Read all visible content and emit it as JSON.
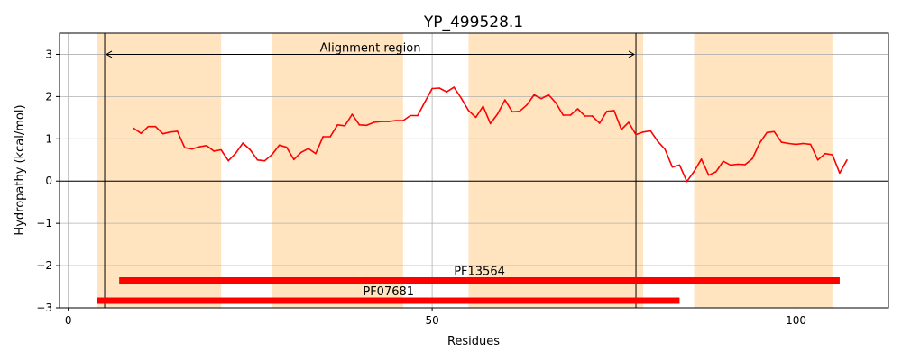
{
  "chart_data": {
    "type": "line",
    "title": "YP_499528.1",
    "xlabel": "Residues",
    "ylabel": "Hydropathy (kcal/mol)",
    "xlim": [
      -1.2,
      112.7
    ],
    "ylim": [
      -3,
      3.5
    ],
    "x_ticks": [
      0,
      50,
      100
    ],
    "y_ticks": [
      -3,
      -2,
      -1,
      0,
      1,
      2,
      3
    ],
    "grid": true,
    "colors": {
      "line": "#ff0000",
      "band": "#ffe4bf",
      "domain": "#ff0000",
      "axis": "#000000",
      "grid": "#b0b0b0"
    },
    "bands": [
      [
        4,
        21
      ],
      [
        28,
        46
      ],
      [
        55,
        79
      ],
      [
        86,
        105
      ]
    ],
    "alignment": {
      "label": "Alignment region",
      "x_start": 5,
      "x_end": 78,
      "y": 3
    },
    "domains": [
      {
        "label": "PF13564",
        "x_start": 7,
        "x_end": 106,
        "y": -2.35
      },
      {
        "label": "PF07681",
        "x_start": 4,
        "x_end": 84,
        "y": -2.83
      }
    ],
    "series": [
      {
        "x": [
          9,
          10,
          11,
          12,
          13,
          14,
          15,
          16,
          17,
          18,
          19,
          20,
          21,
          22,
          23,
          24,
          25,
          26,
          27,
          28,
          29,
          30,
          31,
          32,
          33,
          34,
          35,
          36,
          37,
          38,
          39,
          40,
          41,
          42,
          43,
          44,
          45,
          46,
          47,
          48,
          49,
          50,
          51,
          52,
          53,
          54,
          55,
          56,
          57,
          58,
          59,
          60,
          61,
          62,
          63,
          64,
          65,
          66,
          67,
          68,
          69,
          70,
          71,
          72,
          73,
          74,
          75,
          76,
          77,
          78,
          79,
          80,
          81,
          82,
          83,
          84,
          85,
          86,
          87,
          88,
          89,
          90,
          91,
          92,
          93,
          94,
          95,
          96,
          97,
          98,
          99,
          100,
          101,
          102,
          103,
          104,
          105,
          106,
          107
        ],
        "y": [
          1.25,
          1.13,
          1.29,
          1.29,
          1.12,
          1.16,
          1.18,
          0.79,
          0.76,
          0.81,
          0.84,
          0.71,
          0.74,
          0.48,
          0.66,
          0.9,
          0.74,
          0.5,
          0.48,
          0.63,
          0.85,
          0.8,
          0.51,
          0.68,
          0.77,
          0.65,
          1.05,
          1.05,
          1.33,
          1.31,
          1.58,
          1.33,
          1.32,
          1.39,
          1.41,
          1.41,
          1.43,
          1.43,
          1.55,
          1.55,
          1.87,
          2.19,
          2.2,
          2.11,
          2.22,
          1.96,
          1.67,
          1.51,
          1.77,
          1.36,
          1.59,
          1.92,
          1.64,
          1.65,
          1.8,
          2.04,
          1.95,
          2.04,
          1.85,
          1.56,
          1.56,
          1.71,
          1.54,
          1.54,
          1.37,
          1.65,
          1.67,
          1.22,
          1.39,
          1.1,
          1.16,
          1.19,
          0.94,
          0.75,
          0.33,
          0.38,
          -0.01,
          0.23,
          0.52,
          0.14,
          0.22,
          0.47,
          0.38,
          0.4,
          0.39,
          0.53,
          0.9,
          1.15,
          1.17,
          0.92,
          0.89,
          0.87,
          0.89,
          0.87,
          0.5,
          0.65,
          0.62,
          0.19,
          0.5
        ]
      }
    ]
  }
}
